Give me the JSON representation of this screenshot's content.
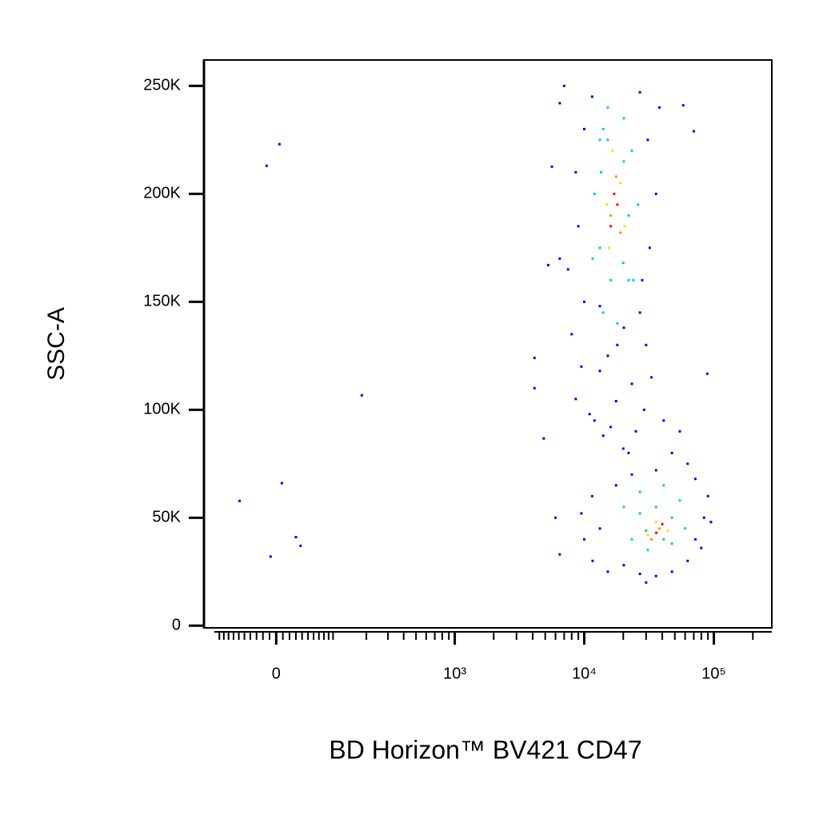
{
  "chart_data": {
    "type": "scatter",
    "x_label": "BD Horizon™ BV421 CD47",
    "y_label": "SSC-A",
    "xscale": "biexponential",
    "xlim": [
      -140,
      280000
    ],
    "ylim": [
      -1000,
      262000
    ],
    "xticks": [
      0,
      {
        "value": 1000,
        "label": "10³"
      },
      {
        "value": 10000,
        "label": "10⁴"
      },
      {
        "value": 100000,
        "label": "10⁵"
      }
    ],
    "xminorticks": [
      -100,
      -90,
      -80,
      -70,
      -60,
      -50,
      -40,
      -30,
      -20,
      -10,
      10,
      20,
      30,
      40,
      50,
      60,
      70,
      80,
      90,
      100,
      200,
      300,
      400,
      500,
      600,
      700,
      800,
      900,
      2000,
      3000,
      4000,
      5000,
      6000,
      7000,
      8000,
      9000,
      20000,
      30000,
      40000,
      50000,
      60000,
      70000,
      80000,
      90000,
      200000
    ],
    "yticks": [
      {
        "value": 0,
        "label": "0"
      },
      {
        "value": 50000,
        "label": "50K"
      },
      {
        "value": 100000,
        "label": "100K"
      },
      {
        "value": 150000,
        "label": "150K"
      },
      {
        "value": 200000,
        "label": "200K"
      },
      {
        "value": 250000,
        "label": "250K"
      }
    ],
    "series": [
      {
        "color": "#0000ff",
        "x": [
          -14.4,
          4.8,
          183,
          8.4,
          -58.6,
          -8.4,
          30,
          37.5,
          4130,
          4130,
          4870,
          89000,
          70000,
          58000,
          6470,
          5630,
          5270,
          11500,
          26900,
          10000,
          30900,
          8600,
          35800,
          9000,
          32000,
          7500,
          28000,
          10000,
          26900,
          8000,
          30000,
          9500,
          33000,
          8600,
          29000,
          12000,
          25000,
          11000,
          14000,
          20000,
          7000,
          13200,
          20200,
          15200,
          23300,
          17600,
          13200,
          18000,
          16000,
          6470,
          38000,
          22000,
          11500,
          13200,
          11600,
          15200,
          20200,
          26900,
          35800,
          47500,
          62800,
          72000,
          84000,
          90000,
          72000,
          62800,
          47500,
          35800,
          23300,
          17600,
          10000,
          9500,
          54600,
          41000,
          6470,
          6000,
          95000,
          80000,
          30000
        ],
        "y": [
          213000,
          223000,
          106700,
          66000,
          57800,
          32000,
          41000,
          37000,
          124000,
          110000,
          86700,
          116700,
          229000,
          241000,
          242000,
          212600,
          167000,
          245000,
          247000,
          230000,
          225000,
          210000,
          200000,
          185000,
          175000,
          165000,
          160000,
          150000,
          145000,
          135000,
          130000,
          120000,
          115000,
          105000,
          100000,
          95000,
          90000,
          98000,
          88000,
          82000,
          250000,
          148000,
          138000,
          125000,
          112000,
          104000,
          118000,
          130000,
          92000,
          170000,
          240000,
          80000,
          60000,
          45000,
          30000,
          25000,
          28000,
          24000,
          23000,
          25000,
          30000,
          40000,
          50000,
          60000,
          68000,
          75000,
          80000,
          72000,
          70000,
          65000,
          40000,
          52000,
          90000,
          95000,
          33000,
          50000,
          48000,
          36000,
          20000
        ]
      },
      {
        "color": "#00c8ff",
        "x": [
          15200,
          20200,
          13200,
          23300,
          12000,
          26000,
          11600,
          24000,
          14000,
          18000,
          14000,
          22000,
          20200,
          30900,
          47500,
          54600,
          41000,
          26900,
          23300,
          60000
        ],
        "y": [
          240000,
          235000,
          225000,
          220000,
          200000,
          195000,
          170000,
          160000,
          145000,
          140000,
          230000,
          160000,
          55000,
          35000,
          38000,
          58000,
          65000,
          62000,
          40000,
          45000
        ]
      },
      {
        "color": "#00e070",
        "x": [
          15200,
          20200,
          13500,
          22000,
          13200,
          20000,
          16000,
          26900,
          35800,
          47500,
          41000,
          30000
        ],
        "y": [
          225000,
          215000,
          210000,
          190000,
          175000,
          168000,
          160000,
          52000,
          55000,
          50000,
          40000,
          44000
        ]
      },
      {
        "color": "#e8e800",
        "x": [
          16500,
          19000,
          15000,
          20500,
          15500,
          35800,
          30900,
          44000
        ],
        "y": [
          220000,
          205000,
          195000,
          185000,
          175000,
          48000,
          42000,
          44000
        ]
      },
      {
        "color": "#ff9000",
        "x": [
          17600,
          16000,
          19000,
          38000,
          33000
        ],
        "y": [
          208000,
          190000,
          182000,
          45000,
          40000
        ]
      },
      {
        "color": "#ff0000",
        "x": [
          17000,
          18000,
          16000,
          36000,
          40000
        ],
        "y": [
          200000,
          195000,
          185000,
          43000,
          47000
        ]
      }
    ]
  }
}
